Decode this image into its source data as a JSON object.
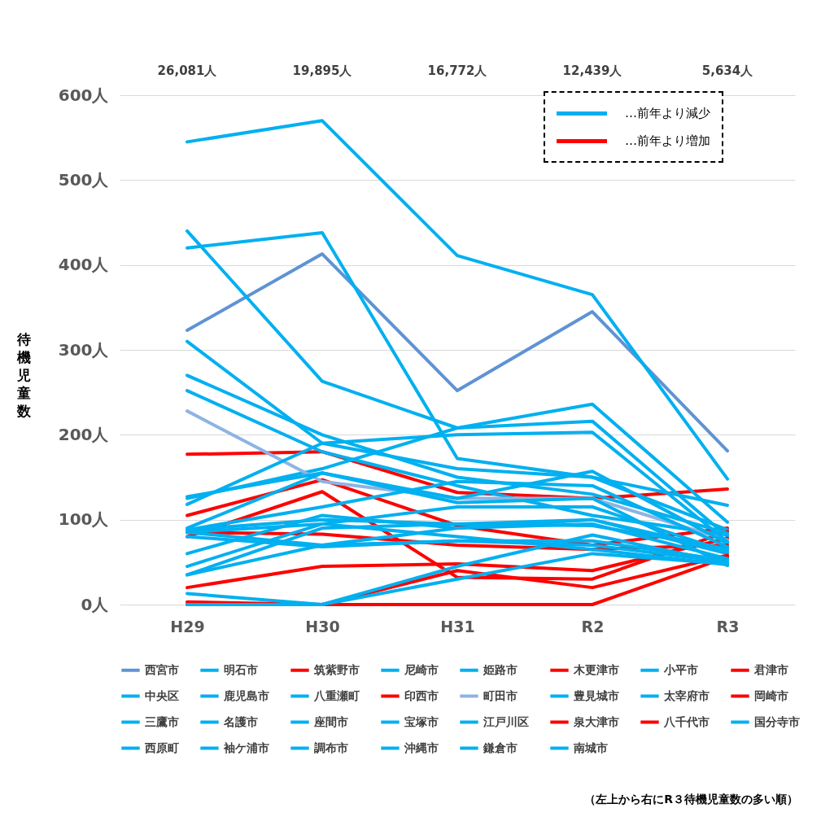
{
  "chart_data": {
    "type": "line",
    "ylabel": "待機児童数",
    "categories": [
      "H29",
      "H30",
      "H31",
      "R2",
      "R3"
    ],
    "ylim": [
      0,
      600
    ],
    "yticks": [
      {
        "value": 0,
        "label": "0人"
      },
      {
        "value": 100,
        "label": "100人"
      },
      {
        "value": 200,
        "label": "200人"
      },
      {
        "value": 300,
        "label": "300人"
      },
      {
        "value": 400,
        "label": "400人"
      },
      {
        "value": 500,
        "label": "500人"
      },
      {
        "value": 600,
        "label": "600人"
      }
    ],
    "grid": "y",
    "legend": "bottom",
    "line_style": "solid",
    "annotations": [
      "26,081人",
      "19,895人",
      "16,772人",
      "12,439人",
      "5,634人",
      "…前年より減少",
      "…前年より増加",
      "（左上から右にR３待機児童数の多い順）"
    ],
    "series": [
      {
        "name": "西宮市",
        "color": "#5f93d3",
        "values": [
          323,
          413,
          252,
          345,
          181
        ]
      },
      {
        "name": "明石市",
        "color": "#00b0f0",
        "values": [
          545,
          570,
          411,
          365,
          148
        ]
      },
      {
        "name": "筑紫野市",
        "color": "#ff0000",
        "values": [
          177,
          180,
          132,
          125,
          136
        ]
      },
      {
        "name": "尼崎市",
        "color": "#00b0f0",
        "values": [
          420,
          438,
          172,
          150,
          117
        ]
      },
      {
        "name": "姫路市",
        "color": "#00b0f0",
        "values": [
          440,
          263,
          208,
          236,
          97
        ]
      },
      {
        "name": "木更津市",
        "color": "#ff0000",
        "values": [
          105,
          147,
          93,
          70,
          90
        ]
      },
      {
        "name": "小平市",
        "color": "#00b0f0",
        "values": [
          310,
          190,
          160,
          150,
          88
        ]
      },
      {
        "name": "君津市",
        "color": "#ff0000",
        "values": [
          80,
          133,
          32,
          30,
          86
        ]
      },
      {
        "name": "中央区",
        "color": "#00b0f0",
        "values": [
          270,
          200,
          150,
          130,
          84
        ]
      },
      {
        "name": "鹿児島市",
        "color": "#00b0f0",
        "values": [
          252,
          180,
          140,
          105,
          82
        ]
      },
      {
        "name": "八重瀬町",
        "color": "#00b0f0",
        "values": [
          125,
          160,
          208,
          216,
          80
        ]
      },
      {
        "name": "印西市",
        "color": "#ff0000",
        "values": [
          20,
          45,
          48,
          40,
          78
        ]
      },
      {
        "name": "町田市",
        "color": "#8db4e2",
        "values": [
          228,
          145,
          125,
          125,
          76
        ]
      },
      {
        "name": "豊見城市",
        "color": "#00b0f0",
        "values": [
          118,
          190,
          200,
          203,
          74
        ]
      },
      {
        "name": "太宰府市",
        "color": "#00b0f0",
        "values": [
          90,
          155,
          125,
          157,
          72
        ]
      },
      {
        "name": "岡崎市",
        "color": "#ff0000",
        "values": [
          85,
          83,
          70,
          65,
          70
        ]
      },
      {
        "name": "三鷹市",
        "color": "#00b0f0",
        "values": [
          88,
          115,
          145,
          140,
          68
        ]
      },
      {
        "name": "名護市",
        "color": "#00b0f0",
        "values": [
          88,
          100,
          95,
          93,
          66
        ]
      },
      {
        "name": "座間市",
        "color": "#00b0f0",
        "values": [
          60,
          105,
          90,
          100,
          64
        ]
      },
      {
        "name": "宝塚市",
        "color": "#00b0f0",
        "values": [
          45,
          95,
          115,
          115,
          62
        ]
      },
      {
        "name": "江戸川区",
        "color": "#00b0f0",
        "values": [
          35,
          90,
          95,
          100,
          60
        ]
      },
      {
        "name": "泉大津市",
        "color": "#ff0000",
        "values": [
          3,
          0,
          40,
          20,
          58
        ]
      },
      {
        "name": "八千代市",
        "color": "#ff0000",
        "values": [
          0,
          0,
          0,
          0,
          56
        ]
      },
      {
        "name": "国分寺市",
        "color": "#00b0f0",
        "values": [
          85,
          70,
          90,
          95,
          54
        ]
      },
      {
        "name": "西原町",
        "color": "#00b0f0",
        "values": [
          80,
          68,
          75,
          75,
          52
        ]
      },
      {
        "name": "袖ケ浦市",
        "color": "#00b0f0",
        "values": [
          35,
          70,
          75,
          70,
          50
        ]
      },
      {
        "name": "調布市",
        "color": "#00b0f0",
        "values": [
          13,
          0,
          45,
          82,
          49
        ]
      },
      {
        "name": "沖縄市",
        "color": "#00b0f0",
        "values": [
          0,
          0,
          30,
          60,
          48
        ]
      },
      {
        "name": "鎌倉市",
        "color": "#00b0f0",
        "values": [
          85,
          95,
          80,
          65,
          47
        ]
      },
      {
        "name": "南城市",
        "color": "#00b0f0",
        "values": [
          127,
          155,
          120,
          125,
          46
        ]
      }
    ]
  }
}
